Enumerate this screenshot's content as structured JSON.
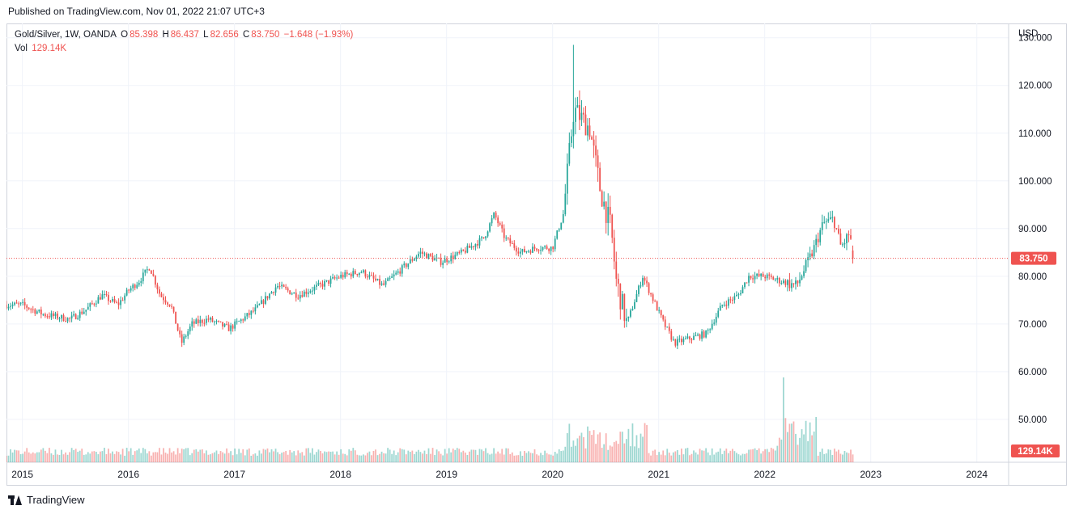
{
  "published": "Published on TradingView.com, Nov 01, 2022 21:07 UTC+3",
  "legend": {
    "symbol": "Gold/Silver, 1W, OANDA",
    "o_label": "O",
    "o_value": "85.398",
    "h_label": "H",
    "h_value": "86.437",
    "l_label": "L",
    "l_value": "82.656",
    "c_label": "C",
    "c_value": "83.750",
    "change": "−1.648 (−1.93%)",
    "vol_label": "Vol",
    "vol_value": "129.14K"
  },
  "footer": {
    "brand": "TradingView"
  },
  "colors": {
    "up": "#26a69a",
    "down": "#ef5350",
    "grid": "#f0f3fa",
    "text": "#131722",
    "border": "#d1d4dc"
  },
  "chart_data": {
    "type": "candlestick",
    "currency": "USD",
    "ylim": [
      41,
      133
    ],
    "y_ticks": [
      "50.000",
      "60.000",
      "70.000",
      "80.000",
      "90.000",
      "100.000",
      "110.000",
      "120.000",
      "130.000"
    ],
    "x_ticks": [
      "2015",
      "2016",
      "2017",
      "2018",
      "2019",
      "2020",
      "2021",
      "2022",
      "2023",
      "2024"
    ],
    "xlim": [
      2014.85,
      2024.3
    ],
    "last_price": 83.75,
    "last_price_label": "83.750",
    "last_volume_label": "129.14K",
    "key_points": [
      [
        2014.85,
        74
      ],
      [
        2015.0,
        74
      ],
      [
        2015.2,
        72
      ],
      [
        2015.45,
        71
      ],
      [
        2015.6,
        73
      ],
      [
        2015.75,
        76
      ],
      [
        2015.9,
        74
      ],
      [
        2016.0,
        77
      ],
      [
        2016.1,
        79
      ],
      [
        2016.2,
        82
      ],
      [
        2016.3,
        76
      ],
      [
        2016.4,
        74
      ],
      [
        2016.5,
        66
      ],
      [
        2016.6,
        70
      ],
      [
        2016.75,
        71
      ],
      [
        2016.95,
        69
      ],
      [
        2017.2,
        73
      ],
      [
        2017.4,
        78
      ],
      [
        2017.6,
        76
      ],
      [
        2017.8,
        78
      ],
      [
        2018.0,
        80
      ],
      [
        2018.2,
        81
      ],
      [
        2018.4,
        78
      ],
      [
        2018.6,
        82
      ],
      [
        2018.75,
        85
      ],
      [
        2018.95,
        83
      ],
      [
        2019.15,
        85
      ],
      [
        2019.35,
        88
      ],
      [
        2019.45,
        93
      ],
      [
        2019.55,
        88
      ],
      [
        2019.7,
        85
      ],
      [
        2019.85,
        86
      ],
      [
        2020.0,
        86
      ],
      [
        2020.1,
        93
      ],
      [
        2020.2,
        115
      ],
      [
        2020.35,
        111
      ],
      [
        2020.45,
        98
      ],
      [
        2020.55,
        90
      ],
      [
        2020.6,
        79
      ],
      [
        2020.7,
        70
      ],
      [
        2020.85,
        80
      ],
      [
        2020.95,
        75
      ],
      [
        2021.05,
        70
      ],
      [
        2021.15,
        66
      ],
      [
        2021.3,
        67
      ],
      [
        2021.45,
        68
      ],
      [
        2021.6,
        74
      ],
      [
        2021.75,
        76
      ],
      [
        2021.85,
        80
      ],
      [
        2022.0,
        80
      ],
      [
        2022.15,
        79
      ],
      [
        2022.3,
        78
      ],
      [
        2022.45,
        85
      ],
      [
        2022.55,
        91
      ],
      [
        2022.65,
        92
      ],
      [
        2022.72,
        86
      ],
      [
        2022.8,
        89
      ],
      [
        2022.84,
        83.75
      ]
    ]
  }
}
